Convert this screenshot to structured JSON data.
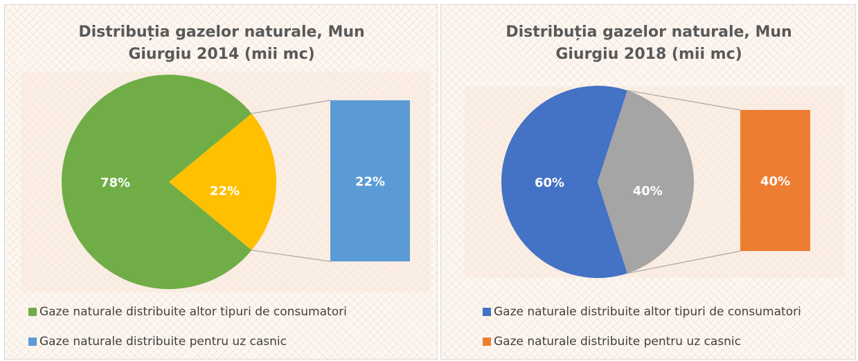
{
  "chart_data": [
    {
      "type": "pie",
      "title": "Distribuția gazelor naturale, Mun Giurgiu 2014 (mii mc)",
      "categories": [
        "Gaze naturale distribuite altor tipuri de consumatori",
        "Gaze naturale distribuite pentru uz casnic"
      ],
      "values": [
        78,
        22
      ],
      "value_labels": [
        "78%",
        "22%"
      ],
      "colors": [
        "#70ad47",
        "#5b9bd5"
      ],
      "other_value": 22,
      "other_label": "22%",
      "other_color": "#ffc000"
    },
    {
      "type": "pie",
      "title": "Distribuția gazelor naturale, Mun Giurgiu 2018 (mii mc)",
      "categories": [
        "Gaze naturale distribuite altor tipuri de consumatori",
        "Gaze naturale distribuite pentru uz casnic"
      ],
      "values": [
        60,
        40
      ],
      "value_labels": [
        "60%",
        "40%"
      ],
      "colors": [
        "#4472c4",
        "#ed7d31"
      ],
      "other_value": 40,
      "other_label": "40%",
      "other_color": "#a5a5a5"
    }
  ]
}
